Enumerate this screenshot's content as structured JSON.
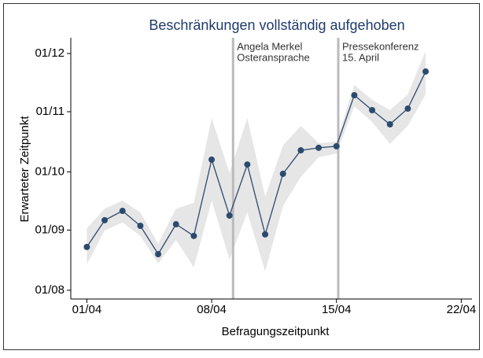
{
  "chart_data": {
    "type": "line",
    "title": "Beschränkungen vollständig aufgehoben",
    "xlabel": "Befragungszeitpunkt",
    "ylabel": "Erwarteter Zeitpunkt",
    "x": [
      1,
      2,
      3,
      4,
      5,
      6,
      7,
      8,
      9,
      10,
      11,
      12,
      13,
      14,
      15,
      16,
      17,
      18,
      19,
      20
    ],
    "values": [
      236.3,
      250.1,
      254.9,
      247.2,
      232.6,
      248.0,
      242.0,
      281.3,
      252.5,
      278.8,
      242.8,
      274.0,
      286.1,
      287.4,
      288.2,
      314.5,
      306.8,
      299.5,
      307.6,
      326.7
    ],
    "ci_lower": [
      227.4,
      244.8,
      248.9,
      242.0,
      227.8,
      239.9,
      225.8,
      260.2,
      229.8,
      254.1,
      223.7,
      257.4,
      272.4,
      282.5,
      284.5,
      308.8,
      300.7,
      289.4,
      298.7,
      314.9
    ],
    "ci_upper": [
      246.0,
      256.1,
      260.2,
      254.1,
      237.9,
      256.1,
      259.0,
      302.8,
      274.4,
      302.8,
      262.2,
      288.6,
      298.7,
      289.8,
      290.6,
      319.8,
      312.1,
      306.8,
      314.9,
      337.2
    ],
    "color": "#2c4a6e",
    "band_color": "#e6e6e6",
    "xlim": [
      0.1,
      22.6
    ],
    "xticks": [
      {
        "value": 1,
        "label": "01/04"
      },
      {
        "value": 8,
        "label": "08/04"
      },
      {
        "value": 15,
        "label": "15/04"
      },
      {
        "value": 22,
        "label": "22/04"
      }
    ],
    "ylim": [
      209.5,
      344.1
    ],
    "yticks": [
      {
        "value": 214,
        "label": "01/08"
      },
      {
        "value": 245,
        "label": "01/09"
      },
      {
        "value": 275,
        "label": "01/10"
      },
      {
        "value": 306,
        "label": "01/11"
      },
      {
        "value": 336,
        "label": "01/12"
      }
    ],
    "annotations": [
      {
        "x": 9.2,
        "text": [
          "Angela Merkel",
          "Osteransprache"
        ]
      },
      {
        "x": 15.1,
        "text": [
          "Pressekonferenz",
          "15. April"
        ]
      }
    ]
  }
}
